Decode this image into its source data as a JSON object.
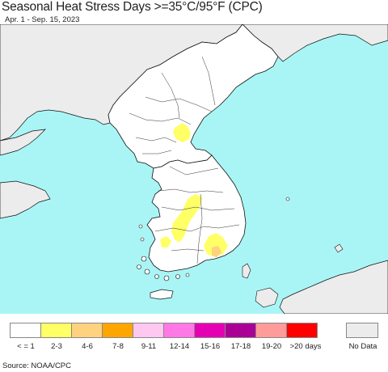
{
  "header": {
    "title": "Seasonal Heat Stress Days >=35°C/95°F (CPC)",
    "subtitle": "Apr. 1 - Sep. 15, 2023"
  },
  "colors": {
    "ocean": "#a9f5f5",
    "land_nodata": "#ececec",
    "land_value": "#ffffff",
    "border": "#333333",
    "coast": "#111111"
  },
  "legend": {
    "items": [
      {
        "label": "< = 1",
        "color": "#ffffff"
      },
      {
        "label": "2-3",
        "color": "#ffff66"
      },
      {
        "label": "4-6",
        "color": "#ffd27f"
      },
      {
        "label": "7-8",
        "color": "#ffa500"
      },
      {
        "label": "9-11",
        "color": "#ffc8f0"
      },
      {
        "label": "12-14",
        "color": "#ff78e6"
      },
      {
        "label": "15-16",
        "color": "#e600b4"
      },
      {
        "label": "17-18",
        "color": "#aa0096"
      },
      {
        "label": "19-20",
        "color": "#ff9b9b"
      },
      {
        "label": ">20 days",
        "color": "#ff0000"
      }
    ],
    "nodata": {
      "label": "No Data",
      "color": "#ececec"
    }
  },
  "footer": {
    "source": "Source: NOAA/CPC"
  }
}
